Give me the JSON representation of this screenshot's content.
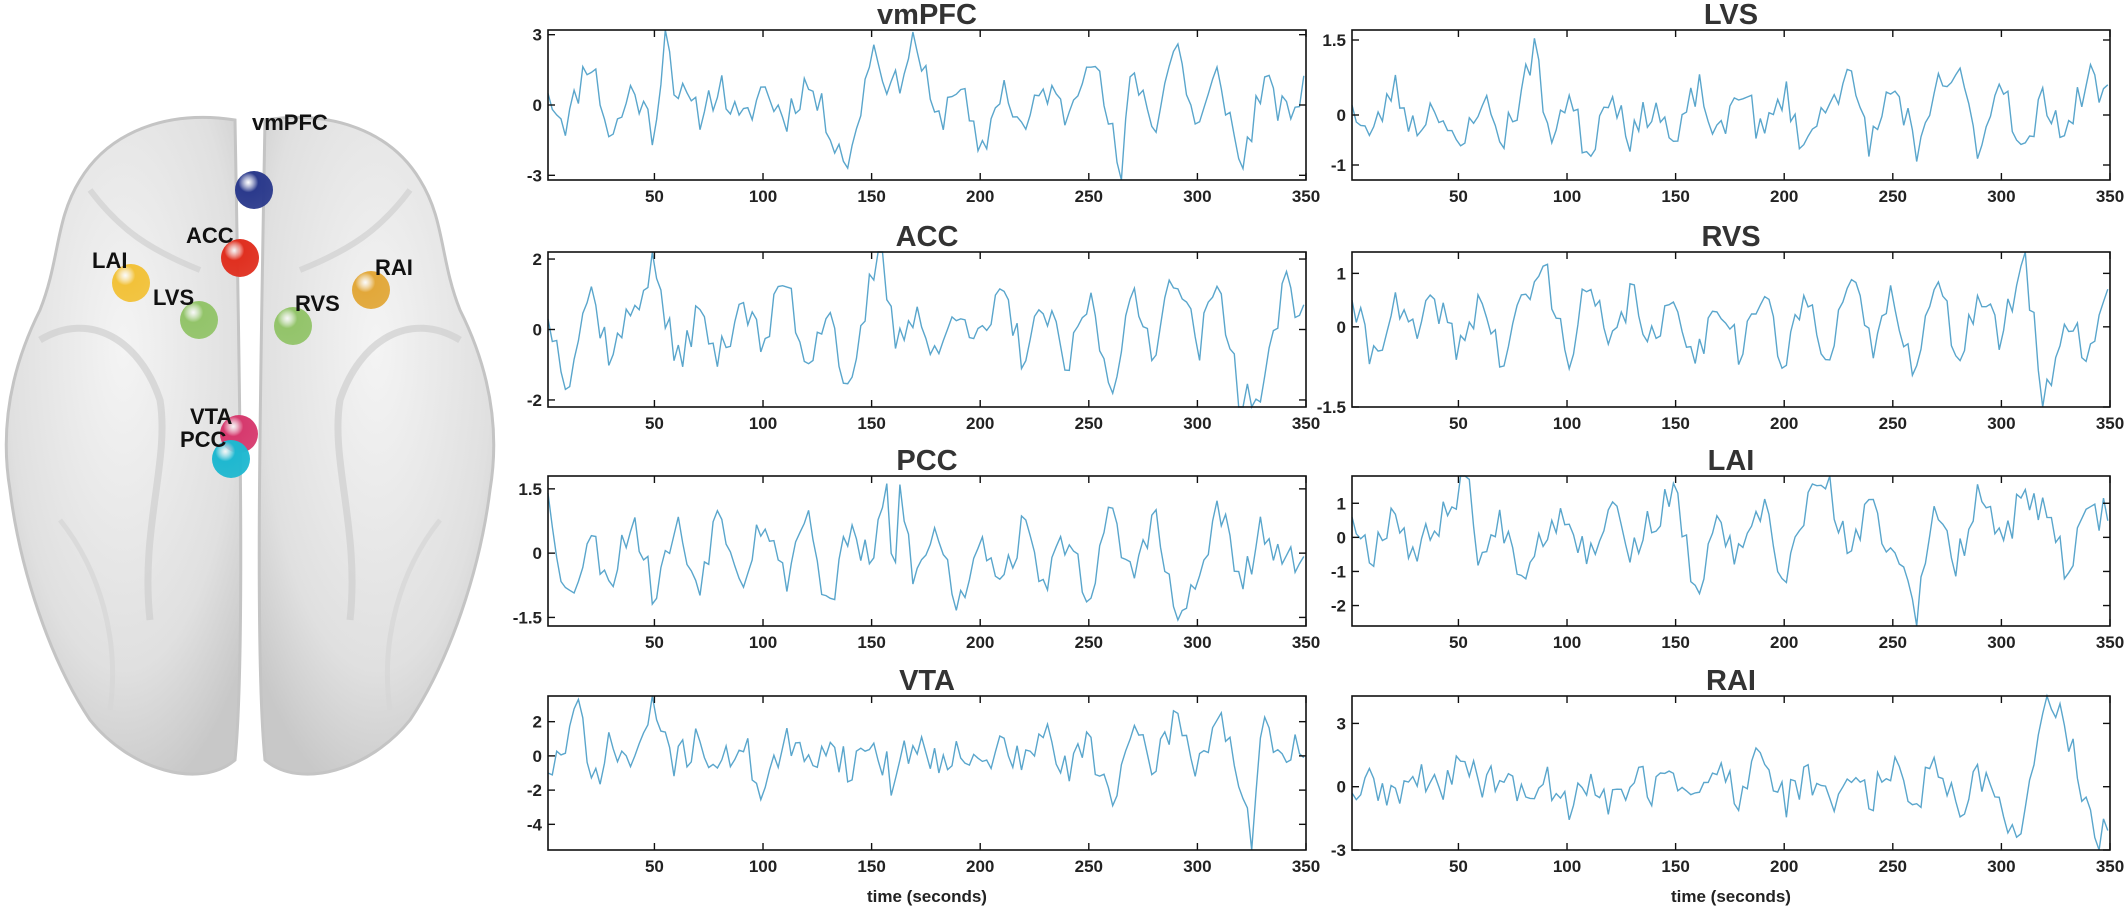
{
  "brain_map": {
    "regions": [
      {
        "label": "vmPFC",
        "color": "#2b3a8c"
      },
      {
        "label": "ACC",
        "color": "#e03020"
      },
      {
        "label": "LAI",
        "color": "#f2c23a"
      },
      {
        "label": "RAI",
        "color": "#e2a83a"
      },
      {
        "label": "LVS",
        "color": "#93c46a"
      },
      {
        "label": "RVS",
        "color": "#93c46a"
      },
      {
        "label": "VTA",
        "color": "#d63a6e"
      },
      {
        "label": "PCC",
        "color": "#1fb8d0"
      }
    ]
  },
  "chart_data": [
    {
      "type": "line",
      "title": "vmPFC",
      "xlim": [
        1,
        350
      ],
      "ylim": [
        -3.2,
        3.2
      ],
      "yticks": [
        "3",
        "0",
        "-3"
      ],
      "ytick_values": [
        3,
        0,
        -3
      ],
      "xticks": [
        50,
        100,
        150,
        200,
        250,
        300,
        350
      ],
      "xlabel": "",
      "line_color": "#5aa6cc",
      "seed": 11,
      "x": [
        1,
        10,
        20,
        30,
        40,
        50,
        55,
        60,
        70,
        80,
        90,
        100,
        110,
        120,
        130,
        140,
        150,
        160,
        170,
        180,
        190,
        200,
        210,
        220,
        230,
        240,
        250,
        260,
        265,
        270,
        280,
        290,
        300,
        310,
        320,
        330,
        340,
        350
      ],
      "y": [
        0.5,
        -0.8,
        2.2,
        -1.5,
        0.8,
        -1.2,
        3.2,
        0.6,
        -0.5,
        0.9,
        -1.0,
        0.8,
        -0.6,
        1.0,
        -0.8,
        -2.6,
        2.6,
        0.5,
        2.9,
        -1.0,
        1.2,
        -2.5,
        1.0,
        -1.2,
        0.8,
        -0.5,
        2.6,
        -1.0,
        -3.2,
        1.8,
        -1.0,
        2.8,
        -1.2,
        1.5,
        -2.8,
        1.0,
        -0.5,
        0.6
      ]
    },
    {
      "type": "line",
      "title": "LVS",
      "xlim": [
        1,
        350
      ],
      "ylim": [
        -1.3,
        1.7
      ],
      "yticks": [
        "1.5",
        "0",
        "-1"
      ],
      "ytick_values": [
        1.5,
        0,
        -1
      ],
      "xticks": [
        50,
        100,
        150,
        200,
        250,
        300,
        350
      ],
      "xlabel": "",
      "line_color": "#5aa6cc",
      "seed": 23,
      "x": [
        1,
        10,
        20,
        30,
        40,
        50,
        60,
        70,
        80,
        86,
        90,
        100,
        110,
        120,
        130,
        140,
        150,
        160,
        170,
        180,
        190,
        200,
        210,
        220,
        230,
        240,
        250,
        259,
        260,
        270,
        280,
        290,
        300,
        310,
        320,
        330,
        340,
        350
      ],
      "y": [
        0.2,
        -0.5,
        0.6,
        -0.3,
        0.3,
        -0.9,
        0.4,
        -0.5,
        0.5,
        1.7,
        -0.6,
        0.4,
        -0.8,
        0.6,
        -0.5,
        0.3,
        -0.7,
        0.6,
        -0.6,
        0.7,
        -0.5,
        0.5,
        -0.7,
        0.4,
        0.7,
        -0.6,
        0.6,
        -0.3,
        -1.3,
        0.5,
        0.8,
        -0.7,
        0.9,
        -0.9,
        0.4,
        -0.4,
        0.8,
        0.3
      ]
    },
    {
      "type": "line",
      "title": "ACC",
      "xlim": [
        1,
        350
      ],
      "ylim": [
        -2.2,
        2.2
      ],
      "yticks": [
        "2",
        "0",
        "-2"
      ],
      "ytick_values": [
        2,
        0,
        -2
      ],
      "xticks": [
        50,
        100,
        150,
        200,
        250,
        300,
        350
      ],
      "xlabel": "",
      "line_color": "#5aa6cc",
      "seed": 37,
      "x": [
        1,
        10,
        20,
        30,
        40,
        50,
        60,
        70,
        80,
        90,
        100,
        110,
        120,
        130,
        140,
        150,
        155,
        160,
        170,
        180,
        190,
        200,
        210,
        220,
        230,
        240,
        250,
        260,
        270,
        280,
        290,
        300,
        310,
        320,
        330,
        340,
        350
      ],
      "y": [
        0.3,
        -1.4,
        1.2,
        -0.8,
        0.6,
        1.9,
        -1.1,
        0.5,
        -0.9,
        1.0,
        -0.6,
        1.6,
        -1.0,
        0.8,
        -2.2,
        1.5,
        2.2,
        -0.3,
        0.6,
        -1.0,
        0.9,
        -0.5,
        1.0,
        -0.8,
        0.6,
        -1.2,
        1.0,
        -1.6,
        0.8,
        -0.5,
        1.9,
        -0.6,
        1.4,
        -2.1,
        -2.0,
        1.5,
        0.2
      ]
    },
    {
      "type": "line",
      "title": "RVS",
      "xlim": [
        1,
        350
      ],
      "ylim": [
        -1.5,
        1.4
      ],
      "yticks": [
        "1",
        "0",
        "-1.5"
      ],
      "ytick_values": [
        1,
        0,
        -1.5
      ],
      "xticks": [
        50,
        100,
        150,
        200,
        250,
        300,
        350
      ],
      "xlabel": "",
      "line_color": "#5aa6cc",
      "seed": 41,
      "x": [
        1,
        10,
        20,
        30,
        40,
        50,
        60,
        70,
        80,
        90,
        100,
        110,
        120,
        130,
        140,
        150,
        160,
        170,
        180,
        190,
        200,
        210,
        220,
        230,
        240,
        250,
        260,
        270,
        280,
        290,
        300,
        310,
        320,
        330,
        340,
        350
      ],
      "y": [
        0.5,
        -0.6,
        0.4,
        -0.2,
        0.5,
        -0.5,
        0.6,
        -0.7,
        0.5,
        1.1,
        -0.6,
        0.8,
        -0.5,
        0.7,
        -0.4,
        0.5,
        -0.6,
        0.6,
        -0.5,
        0.7,
        -0.8,
        0.6,
        -0.5,
        0.9,
        -0.4,
        0.6,
        -0.7,
        0.8,
        -0.5,
        0.6,
        -0.3,
        1.4,
        -1.5,
        0.3,
        -0.6,
        1.0
      ]
    },
    {
      "type": "line",
      "title": "PCC",
      "xlim": [
        1,
        350
      ],
      "ylim": [
        -1.7,
        1.8
      ],
      "yticks": [
        "1.5",
        "0",
        "-1.5"
      ],
      "ytick_values": [
        1.5,
        0,
        -1.5
      ],
      "xticks": [
        50,
        100,
        150,
        200,
        250,
        300,
        350
      ],
      "xlabel": "",
      "line_color": "#5aa6cc",
      "seed": 53,
      "x": [
        1,
        10,
        20,
        30,
        40,
        50,
        60,
        70,
        80,
        90,
        100,
        110,
        120,
        130,
        140,
        150,
        158,
        160,
        163,
        170,
        180,
        190,
        200,
        210,
        220,
        230,
        240,
        250,
        260,
        270,
        280,
        290,
        300,
        310,
        320,
        330,
        340,
        350
      ],
      "y": [
        1.4,
        -1.2,
        0.4,
        -0.6,
        0.9,
        -1.0,
        0.7,
        -0.8,
        1.1,
        -0.6,
        0.9,
        -0.7,
        1.1,
        -1.4,
        0.6,
        -0.4,
        1.8,
        -1.5,
        1.6,
        -0.7,
        0.6,
        -1.3,
        0.5,
        -0.6,
        0.6,
        -0.7,
        0.4,
        -1.0,
        0.9,
        -0.6,
        1.0,
        -1.6,
        -0.8,
        1.2,
        -0.9,
        0.6,
        -0.5,
        0.3
      ]
    },
    {
      "type": "line",
      "title": "LAI",
      "xlim": [
        1,
        350
      ],
      "ylim": [
        -2.6,
        1.8
      ],
      "yticks": [
        "1",
        "0",
        "-1",
        "-2"
      ],
      "ytick_values": [
        1,
        0,
        -1,
        -2
      ],
      "xticks": [
        50,
        100,
        150,
        200,
        250,
        300,
        350
      ],
      "xlabel": "",
      "line_color": "#5aa6cc",
      "seed": 67,
      "x": [
        1,
        10,
        20,
        30,
        40,
        50,
        55,
        60,
        70,
        80,
        90,
        100,
        110,
        120,
        130,
        140,
        150,
        160,
        170,
        180,
        190,
        200,
        210,
        220,
        230,
        240,
        250,
        258,
        260,
        270,
        280,
        290,
        300,
        310,
        320,
        330,
        340,
        350
      ],
      "y": [
        0.6,
        -0.5,
        0.9,
        -0.6,
        0.4,
        1.4,
        1.7,
        -0.8,
        0.5,
        -1.0,
        0.3,
        0.8,
        -0.7,
        1.2,
        -0.5,
        0.6,
        1.2,
        -1.8,
        0.5,
        -0.8,
        0.9,
        -1.4,
        1.0,
        1.6,
        -0.6,
        1.0,
        -0.5,
        -0.9,
        -2.6,
        0.8,
        -0.8,
        1.7,
        -0.3,
        1.2,
        0.6,
        -0.9,
        0.5,
        0.9
      ]
    },
    {
      "type": "line",
      "title": "VTA",
      "xlim": [
        1,
        350
      ],
      "ylim": [
        -5.5,
        3.5
      ],
      "yticks": [
        "2",
        "0",
        "-2",
        "-4"
      ],
      "ytick_values": [
        2,
        0,
        -2,
        -4
      ],
      "xticks": [
        50,
        100,
        150,
        200,
        250,
        300,
        350
      ],
      "xlabel": "time (seconds)",
      "line_color": "#5aa6cc",
      "seed": 71,
      "x": [
        1,
        10,
        15,
        20,
        30,
        40,
        50,
        60,
        70,
        80,
        90,
        100,
        110,
        120,
        130,
        140,
        150,
        160,
        170,
        180,
        190,
        200,
        210,
        220,
        230,
        240,
        250,
        260,
        270,
        280,
        290,
        300,
        310,
        320,
        325,
        330,
        340,
        350
      ],
      "y": [
        -1.0,
        0.8,
        3.3,
        -1.8,
        0.6,
        -0.5,
        2.8,
        -0.6,
        1.2,
        -1.0,
        0.9,
        -2.0,
        0.8,
        -0.6,
        1.0,
        -0.8,
        0.9,
        -1.5,
        1.2,
        -0.6,
        0.9,
        -1.0,
        0.8,
        -0.7,
        1.5,
        -1.2,
        1.0,
        -2.4,
        0.9,
        -0.5,
        2.4,
        -0.6,
        2.6,
        -1.5,
        -5.5,
        1.5,
        -0.4,
        1.0
      ]
    },
    {
      "type": "line",
      "title": "RAI",
      "xlim": [
        1,
        350
      ],
      "ylim": [
        -3.0,
        4.3
      ],
      "yticks": [
        "3",
        "0",
        "-3"
      ],
      "ytick_values": [
        3,
        0,
        -3
      ],
      "xticks": [
        50,
        100,
        150,
        200,
        250,
        300,
        350
      ],
      "xlabel": "time (seconds)",
      "line_color": "#5aa6cc",
      "seed": 89,
      "x": [
        1,
        10,
        20,
        30,
        40,
        50,
        60,
        70,
        80,
        90,
        100,
        110,
        120,
        130,
        140,
        150,
        160,
        170,
        180,
        190,
        200,
        210,
        220,
        230,
        240,
        250,
        260,
        270,
        280,
        290,
        300,
        310,
        320,
        330,
        340,
        345,
        350
      ],
      "y": [
        -0.3,
        0.1,
        -0.5,
        0.4,
        -0.3,
        1.4,
        0.2,
        0.6,
        -0.8,
        0.5,
        -0.9,
        0.6,
        -1.0,
        0.5,
        -0.2,
        0.7,
        -0.6,
        0.9,
        -0.7,
        2.0,
        -0.9,
        0.4,
        -0.8,
        0.7,
        -0.5,
        1.0,
        -0.8,
        1.4,
        -1.0,
        0.5,
        -1.2,
        -1.8,
        4.2,
        2.8,
        -1.5,
        -3.0,
        -1.4
      ]
    }
  ]
}
